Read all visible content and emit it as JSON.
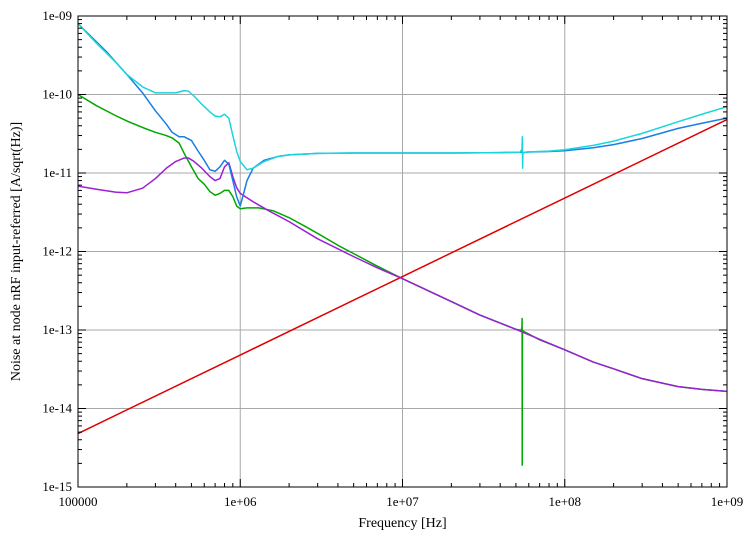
{
  "chart_data": {
    "type": "line",
    "title": "",
    "xlabel": "Frequency [Hz]",
    "ylabel": "Noise at node nRF input-referred [A/sqrt(Hz)]",
    "x_scale": "log",
    "y_scale": "log",
    "xlim": [
      100000,
      1000000000
    ],
    "ylim": [
      1e-15,
      1e-09
    ],
    "grid": true,
    "legend": "none",
    "x_ticks": [
      {
        "value": 100000,
        "label": "100000"
      },
      {
        "value": 1000000,
        "label": "1e+06"
      },
      {
        "value": 10000000,
        "label": "1e+07"
      },
      {
        "value": 100000000,
        "label": "1e+08"
      },
      {
        "value": 1000000000,
        "label": "1e+09"
      }
    ],
    "y_ticks": [
      {
        "value": 1e-15,
        "label": "1e-15"
      },
      {
        "value": 1e-14,
        "label": "1e-14"
      },
      {
        "value": 1e-13,
        "label": "1e-13"
      },
      {
        "value": 1e-12,
        "label": "1e-12"
      },
      {
        "value": 1e-11,
        "label": "1e-11"
      },
      {
        "value": 1e-10,
        "label": "1e-10"
      },
      {
        "value": 1e-09,
        "label": "1e-09"
      }
    ],
    "series": [
      {
        "color": "#e00000",
        "x": [
          100000,
          1000000,
          10000000,
          100000000,
          1000000000
        ],
        "y": [
          4.8e-15,
          4.8e-14,
          4.8e-13,
          4.8e-12,
          4.8e-11
        ]
      },
      {
        "color": "#00a800",
        "x": [
          100000,
          130000,
          170000,
          200000,
          250000,
          300000,
          350000,
          380000,
          420000,
          450000,
          500000,
          550000,
          600000,
          650000,
          700000,
          750000,
          800000,
          850000,
          900000,
          950000,
          1000000,
          1100000,
          1300000,
          1600000,
          2000000,
          2500000,
          3000000,
          4000000,
          5000000,
          7000000,
          10000000,
          20000000,
          30000000,
          50000000,
          53000000,
          54000000,
          54500000,
          54600000,
          54700000,
          54800000,
          55000000,
          55200000,
          55400000,
          56000000,
          57000000,
          70000000,
          100000000,
          150000000,
          200000000,
          300000000,
          500000000,
          700000000,
          1000000000
        ],
        "y": [
          1e-10,
          7.2e-11,
          5.4e-11,
          4.6e-11,
          3.8e-11,
          3.3e-11,
          3e-11,
          2.8e-11,
          2.4e-11,
          1.8e-11,
          1.2e-11,
          8.5e-12,
          7.2e-12,
          5.8e-12,
          5.2e-12,
          5.5e-12,
          6e-12,
          6e-12,
          5e-12,
          3.8e-12,
          3.5e-12,
          3.6e-12,
          3.6e-12,
          3.3e-12,
          2.7e-12,
          2.1e-12,
          1.7e-12,
          1.2e-12,
          9.4e-13,
          6.5e-13,
          4.5e-13,
          2.3e-13,
          1.55e-13,
          1.02e-13,
          1e-13,
          9.9e-14,
          1.1e-13,
          1.4e-13,
          1.9e-15,
          8e-14,
          9.6e-14,
          9.7e-14,
          9.7e-14,
          9.6e-14,
          9.4e-14,
          7.5e-14,
          5.6e-14,
          3.9e-14,
          3.2e-14,
          2.4e-14,
          1.9e-14,
          1.75e-14,
          1.65e-14
        ]
      },
      {
        "color": "#9b1fd6",
        "x": [
          100000,
          130000,
          170000,
          200000,
          250000,
          300000,
          350000,
          400000,
          450000,
          480000,
          520000,
          580000,
          650000,
          700000,
          750000,
          800000,
          850000,
          900000,
          950000,
          1000000,
          1200000,
          1500000,
          2000000,
          3000000,
          5000000,
          7000000,
          10000000,
          20000000,
          30000000,
          50000000,
          70000000,
          100000000,
          150000000,
          200000000,
          300000000,
          500000000,
          700000000,
          1000000000
        ],
        "y": [
          6.8e-12,
          6.2e-12,
          5.7e-12,
          5.6e-12,
          6.4e-12,
          8.5e-12,
          1.15e-11,
          1.4e-11,
          1.55e-11,
          1.55e-11,
          1.4e-11,
          1.15e-11,
          9e-12,
          8e-12,
          8.5e-12,
          1.2e-11,
          1.35e-11,
          9e-12,
          6.5e-12,
          5.5e-12,
          4.3e-12,
          3.3e-12,
          2.4e-12,
          1.45e-12,
          8.6e-13,
          6.2e-13,
          4.5e-13,
          2.3e-13,
          1.55e-13,
          1.02e-13,
          7.6e-14,
          5.6e-14,
          3.9e-14,
          3.2e-14,
          2.4e-14,
          1.9e-14,
          1.75e-14,
          1.65e-14
        ]
      },
      {
        "color": "#1a7ee6",
        "x": [
          100000,
          150000,
          200000,
          250000,
          300000,
          350000,
          380000,
          420000,
          450000,
          500000,
          550000,
          600000,
          650000,
          700000,
          750000,
          800000,
          850000,
          900000,
          950000,
          1000000,
          1050000,
          1100000,
          1200000,
          1400000,
          1700000,
          2000000,
          3000000,
          5000000,
          10000000,
          20000000,
          40000000,
          54000000,
          54500000,
          55000000,
          55500000,
          56000000,
          57000000,
          60000000,
          80000000,
          100000000,
          150000000,
          200000000,
          300000000,
          500000000,
          700000000,
          1000000000
        ],
        "y": [
          8e-10,
          3.5e-10,
          1.8e-10,
          1.05e-10,
          6.2e-11,
          4.2e-11,
          3.3e-11,
          2.9e-11,
          2.9e-11,
          2.6e-11,
          1.9e-11,
          1.45e-11,
          1.1e-11,
          1.05e-11,
          1.2e-11,
          1.45e-11,
          1.3e-11,
          8e-12,
          5e-12,
          3.8e-12,
          5.5e-12,
          8e-12,
          1.15e-11,
          1.45e-11,
          1.62e-11,
          1.7e-11,
          1.78e-11,
          1.8e-11,
          1.8e-11,
          1.8e-11,
          1.82e-11,
          1.84e-11,
          2e-11,
          1.82e-11,
          1.8e-11,
          1.82e-11,
          1.84e-11,
          1.85e-11,
          1.88e-11,
          1.92e-11,
          2.1e-11,
          2.3e-11,
          2.75e-11,
          3.7e-11,
          4.3e-11,
          5e-11
        ]
      },
      {
        "color": "#1ad6dc",
        "x": [
          100000,
          130000,
          170000,
          200000,
          250000,
          300000,
          350000,
          400000,
          450000,
          480000,
          520000,
          580000,
          650000,
          700000,
          750000,
          800000,
          850000,
          900000,
          950000,
          1000000,
          1100000,
          1200000,
          1400000,
          1700000,
          2000000,
          3000000,
          5000000,
          10000000,
          20000000,
          40000000,
          53000000,
          54500000,
          54800000,
          55000000,
          55200000,
          55500000,
          56000000,
          57000000,
          60000000,
          80000000,
          100000000,
          150000000,
          200000000,
          300000000,
          500000000,
          700000000,
          1000000000
        ],
        "y": [
          8e-10,
          4.5e-10,
          2.6e-10,
          1.8e-10,
          1.25e-10,
          1.05e-10,
          1.05e-10,
          1.05e-10,
          1.12e-10,
          1.1e-10,
          9.5e-11,
          7.5e-11,
          6e-11,
          5.3e-11,
          5.2e-11,
          5.6e-11,
          5e-11,
          3e-11,
          1.9e-11,
          1.4e-11,
          1.1e-11,
          1.15e-11,
          1.4e-11,
          1.62e-11,
          1.7e-11,
          1.78e-11,
          1.8e-11,
          1.8e-11,
          1.8e-11,
          1.82e-11,
          1.84e-11,
          2e-11,
          2.9e-11,
          1.15e-11,
          1.75e-11,
          1.8e-11,
          1.82e-11,
          1.84e-11,
          1.86e-11,
          1.9e-11,
          1.98e-11,
          2.25e-11,
          2.55e-11,
          3.2e-11,
          4.5e-11,
          5.6e-11,
          7e-11
        ]
      }
    ]
  }
}
